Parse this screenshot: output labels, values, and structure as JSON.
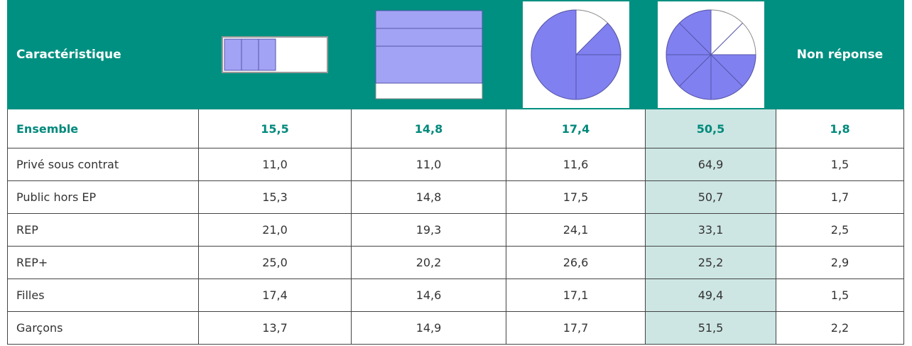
{
  "table": {
    "header": {
      "first": "Caractéristique",
      "last": "Non réponse"
    },
    "rows": [
      {
        "label": "Ensemble",
        "values": [
          "15,5",
          "14,8",
          "17,4",
          "50,5",
          "1,8"
        ]
      },
      {
        "label": "Privé sous contrat",
        "values": [
          "11,0",
          "11,0",
          "11,6",
          "64,9",
          "1,5"
        ]
      },
      {
        "label": "Public hors EP",
        "values": [
          "15,3",
          "14,8",
          "17,5",
          "50,7",
          "1,7"
        ]
      },
      {
        "label": "REP",
        "values": [
          "21,0",
          "19,3",
          "24,1",
          "33,1",
          "2,5"
        ]
      },
      {
        "label": "REP+",
        "values": [
          "25,0",
          "20,2",
          "26,6",
          "25,2",
          "2,9"
        ]
      },
      {
        "label": "Filles",
        "values": [
          "17,4",
          "14,6",
          "17,1",
          "49,4",
          "1,5"
        ]
      },
      {
        "label": "Garçons",
        "values": [
          "13,7",
          "14,9",
          "17,7",
          "51,5",
          "2,2"
        ]
      }
    ]
  }
}
